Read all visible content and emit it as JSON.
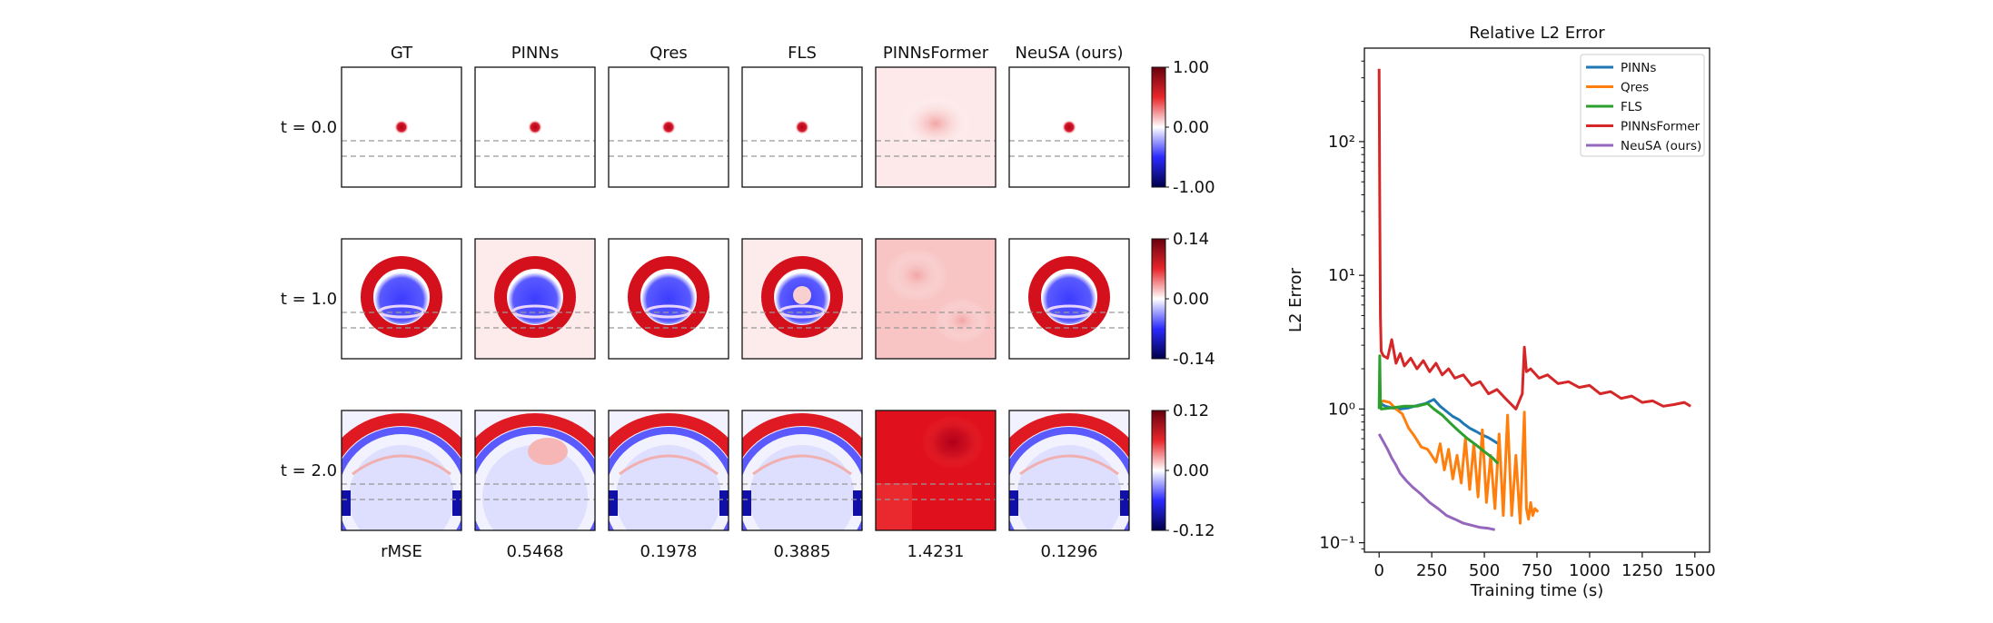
{
  "heatmap_grid": {
    "columns": [
      "GT",
      "PINNs",
      "Qres",
      "FLS",
      "PINNsFormer",
      "NeuSA (ours)"
    ],
    "rows": [
      {
        "label": "t = 0.0",
        "colorbar": {
          "max": "1.00",
          "mid": "0.00",
          "min": "-1.00"
        }
      },
      {
        "label": "t = 1.0",
        "colorbar": {
          "max": "0.14",
          "mid": "0.00",
          "min": "-0.14"
        }
      },
      {
        "label": "t = 2.0",
        "colorbar": {
          "max": "0.12",
          "mid": "0.00",
          "min": "-0.12"
        }
      }
    ],
    "metric_label": "rMSE",
    "metric_values": [
      "0.5468",
      "0.1978",
      "0.3885",
      "1.4231",
      "0.1296"
    ],
    "colors": {
      "positive": "#b2001a",
      "neutral": "#ffffff",
      "negative": "#00008b",
      "reference_lines": "#999999"
    }
  },
  "chart_data": {
    "type": "line",
    "title": "Relative L2 Error",
    "xlabel": "Training time (s)",
    "ylabel": "L2 Error",
    "xlim": [
      -70,
      1570
    ],
    "ylim": [
      0.085,
      500
    ],
    "yscale": "log",
    "xticks": [
      "0",
      "250",
      "500",
      "750",
      "1000",
      "1250",
      "1500"
    ],
    "yticks": [
      "10⁻¹",
      "10⁰",
      "10¹",
      "10²"
    ],
    "legend_position": "top-right",
    "series": [
      {
        "name": "PINNs",
        "color": "#1f77b4",
        "x": [
          0,
          5,
          30,
          60,
          100,
          140,
          180,
          220,
          260,
          290,
          320,
          350,
          380,
          400,
          430,
          460,
          490,
          520,
          550,
          575
        ],
        "y": [
          1.2,
          1.1,
          1.05,
          1.02,
          1.0,
          1.02,
          1.06,
          1.1,
          1.18,
          1.05,
          0.96,
          0.88,
          0.83,
          0.78,
          0.72,
          0.68,
          0.64,
          0.61,
          0.57,
          0.54
        ]
      },
      {
        "name": "Qres",
        "color": "#ff7f0e",
        "x": [
          0,
          20,
          50,
          80,
          110,
          140,
          170,
          200,
          230,
          250,
          270,
          290,
          310,
          330,
          350,
          370,
          390,
          410,
          430,
          450,
          470,
          490,
          510,
          530,
          550,
          570,
          590,
          610,
          630,
          650,
          670,
          690,
          700,
          710,
          720,
          730,
          740,
          755
        ],
        "y": [
          1.1,
          1.15,
          1.12,
          1.0,
          0.92,
          0.72,
          0.62,
          0.52,
          0.5,
          0.45,
          0.4,
          0.55,
          0.35,
          0.5,
          0.3,
          0.45,
          0.28,
          0.6,
          0.25,
          0.55,
          0.22,
          0.7,
          0.2,
          0.45,
          0.18,
          0.65,
          0.16,
          0.9,
          0.16,
          0.45,
          0.14,
          0.95,
          0.18,
          0.15,
          0.2,
          0.16,
          0.18,
          0.17
        ]
      },
      {
        "name": "FLS",
        "color": "#2ca02c",
        "x": [
          0,
          3,
          6,
          10,
          60,
          120,
          180,
          230,
          260,
          300,
          340,
          380,
          420,
          460,
          500,
          540,
          565
        ],
        "y": [
          1.0,
          2.5,
          1.2,
          1.0,
          1.02,
          1.05,
          1.05,
          1.1,
          1.0,
          0.9,
          0.78,
          0.68,
          0.6,
          0.54,
          0.48,
          0.43,
          0.39
        ]
      },
      {
        "name": "PINNsFormer",
        "color": "#d62728",
        "x": [
          0,
          3,
          6,
          10,
          20,
          40,
          60,
          80,
          100,
          120,
          150,
          180,
          210,
          240,
          270,
          300,
          330,
          360,
          400,
          440,
          480,
          520,
          560,
          600,
          650,
          680,
          690,
          700,
          720,
          760,
          800,
          850,
          900,
          950,
          1000,
          1050,
          1100,
          1150,
          1200,
          1250,
          1300,
          1350,
          1400,
          1450,
          1480
        ],
        "y": [
          350,
          35,
          5,
          2.7,
          2.5,
          2.4,
          3.3,
          2.2,
          2.6,
          2.1,
          2.4,
          2.0,
          2.3,
          1.9,
          2.2,
          1.8,
          2.0,
          1.7,
          1.8,
          1.5,
          1.6,
          1.3,
          1.4,
          1.2,
          1.0,
          1.3,
          2.9,
          1.9,
          2.0,
          1.7,
          1.8,
          1.55,
          1.6,
          1.45,
          1.5,
          1.3,
          1.35,
          1.2,
          1.25,
          1.12,
          1.15,
          1.05,
          1.08,
          1.12,
          1.05
        ]
      },
      {
        "name": "NeuSA (ours)",
        "color": "#9467bd",
        "x": [
          0,
          20,
          40,
          60,
          80,
          100,
          130,
          160,
          200,
          240,
          280,
          320,
          360,
          400,
          440,
          480,
          520,
          550
        ],
        "y": [
          0.65,
          0.57,
          0.5,
          0.43,
          0.38,
          0.33,
          0.29,
          0.26,
          0.23,
          0.2,
          0.18,
          0.16,
          0.15,
          0.14,
          0.135,
          0.13,
          0.128,
          0.125
        ]
      }
    ]
  }
}
